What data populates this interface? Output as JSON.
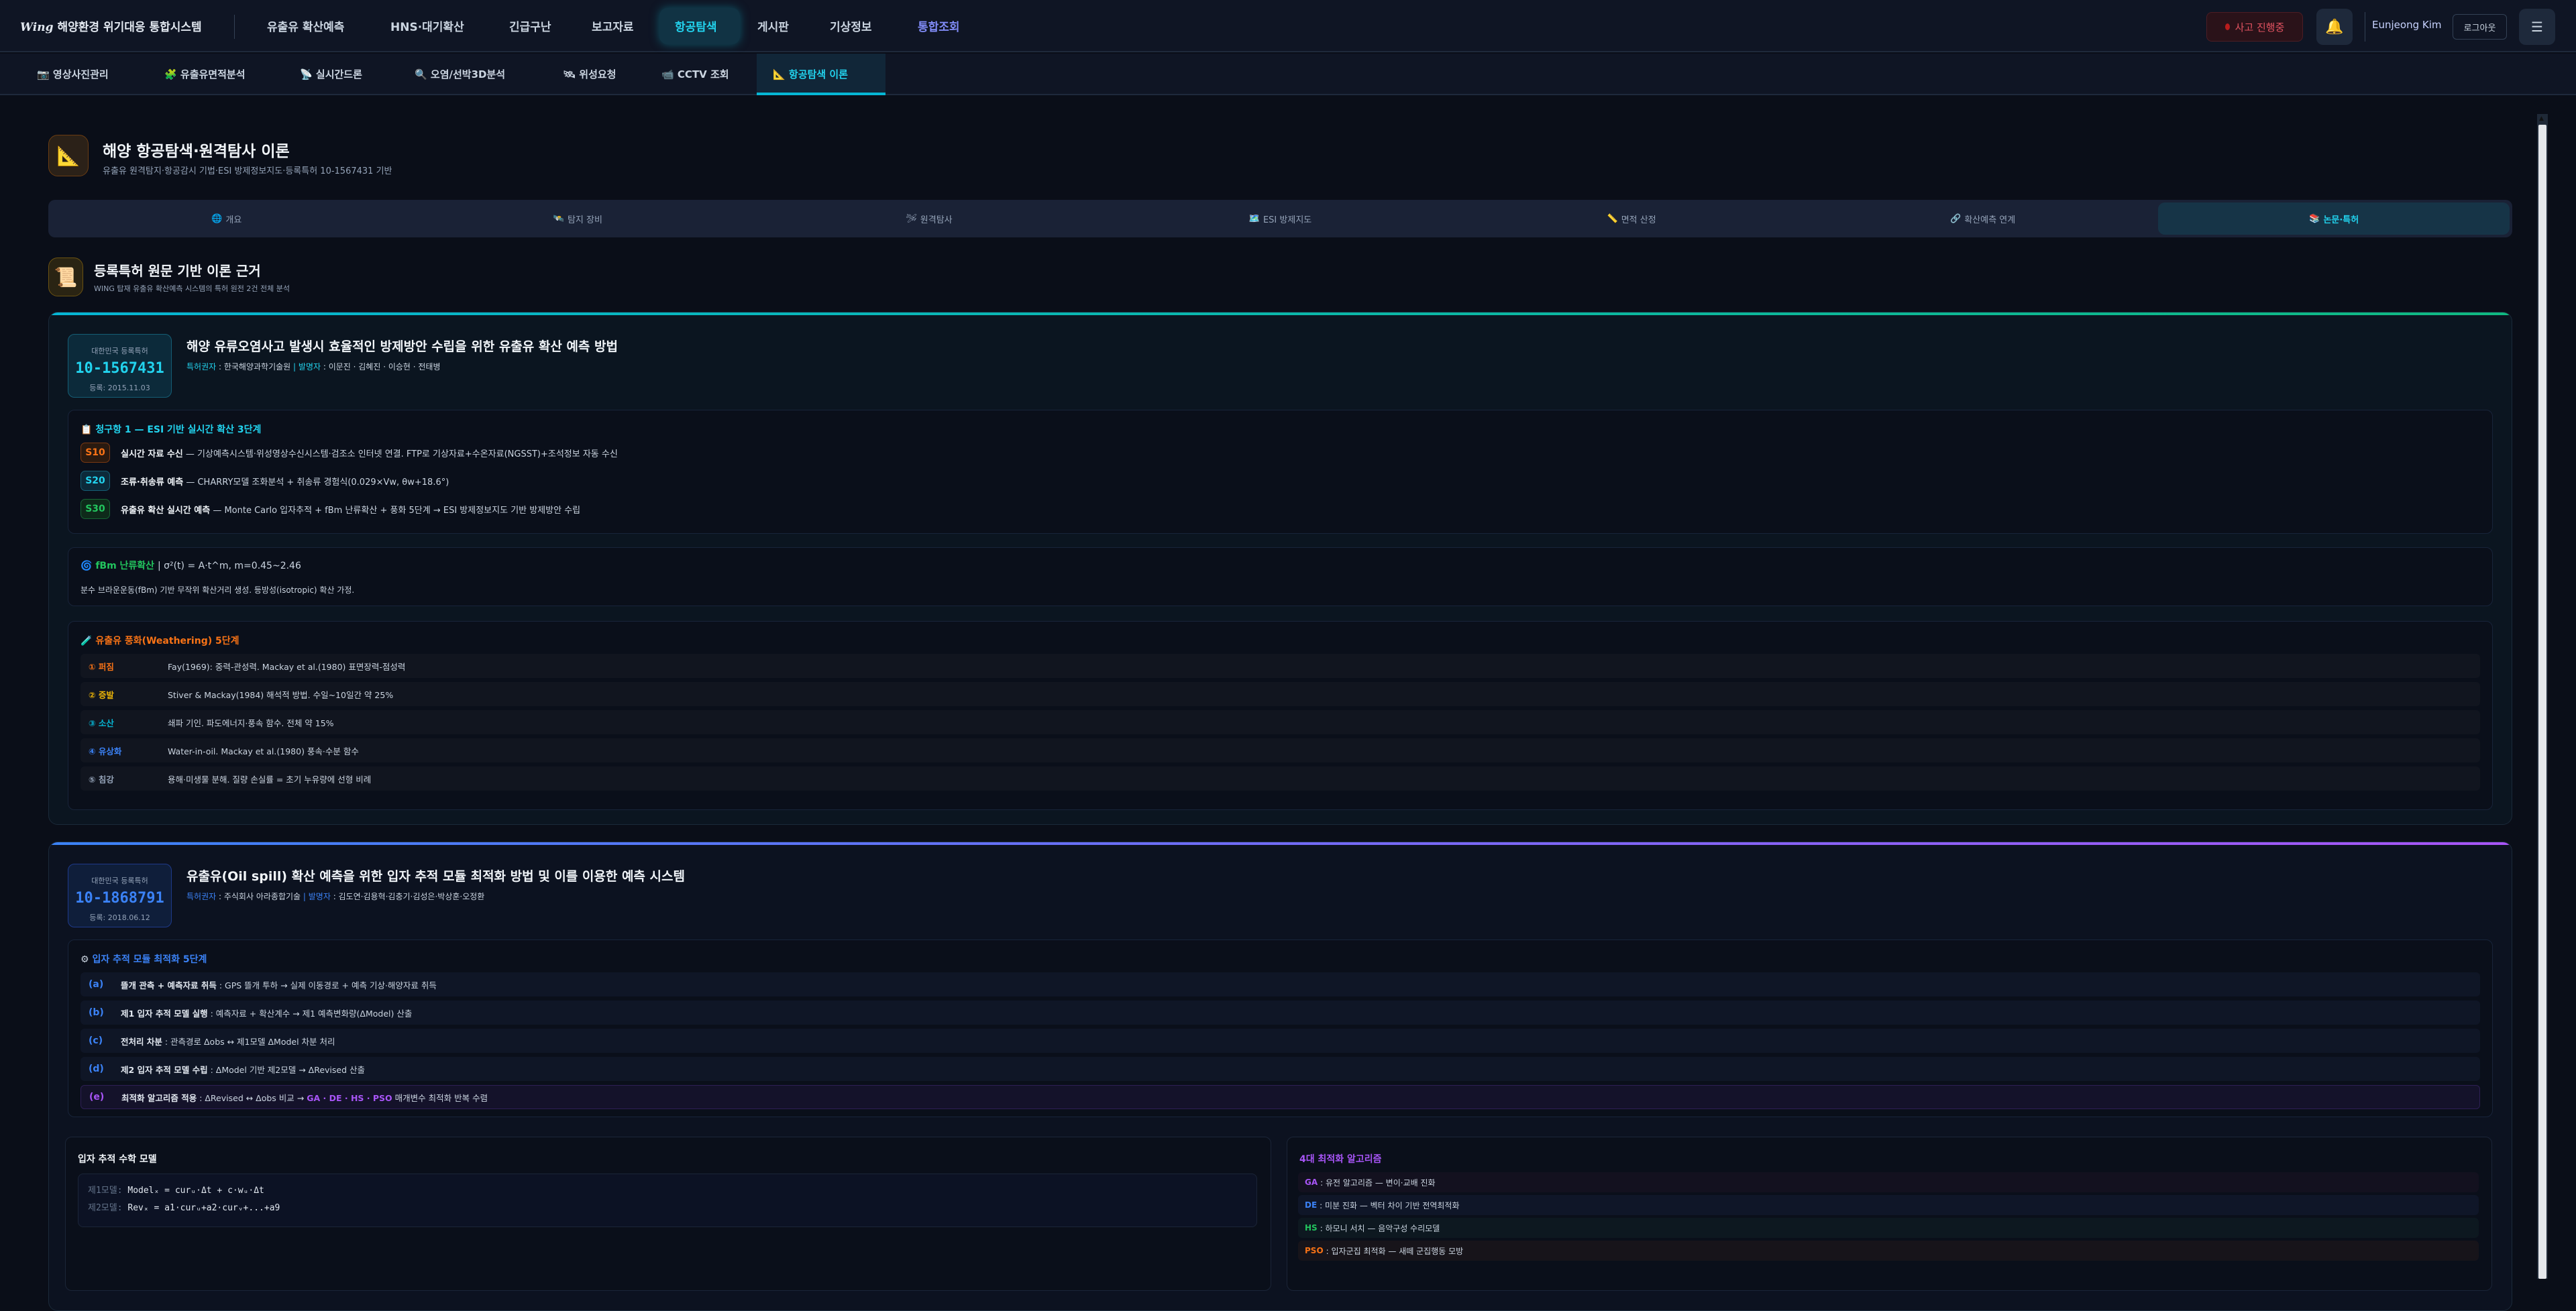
{
  "app": {
    "logo": "Wing",
    "title": "해양환경 위기대응 통합시스템"
  },
  "nav": {
    "items": [
      "유출유 확산예측",
      "HNS·대기확산",
      "긴급구난",
      "보고자료",
      "항공탐색",
      "게시판",
      "기상정보",
      "통합조회"
    ],
    "active": "항공탐색"
  },
  "header_right": {
    "incident": "사고 진행중",
    "user": "Eunjeong Kim",
    "logout": "로그아웃"
  },
  "subnav": {
    "items": [
      "영상사진관리",
      "유출유면적분석",
      "실시간드론",
      "오염/선박3D분석",
      "위성요청",
      "CCTV 조회",
      "항공탐색 이론"
    ],
    "active": "항공탐색 이론"
  },
  "page": {
    "title": "해양 항공탐색·원격탐사 이론",
    "subtitle": "유출유 원격탐지·항공감시 기법·ESI 방제정보지도·등록특허 10-1567431 기반"
  },
  "tabs": [
    {
      "icon": "🌐",
      "label": "개요"
    },
    {
      "icon": "🛰️",
      "label": "탐지 장비"
    },
    {
      "icon": "🛩",
      "label": "원격탐사"
    },
    {
      "icon": "🗺️",
      "label": "ESI 방제지도"
    },
    {
      "icon": "📏",
      "label": "면적 산정"
    },
    {
      "icon": "🔗",
      "label": "확산예측 연계"
    },
    {
      "icon": "📚",
      "label": "논문·특허"
    }
  ],
  "section": {
    "title": "등록특허 원문 기반 이론 근거",
    "subtitle": "WING 탑재 유출유 확산예측 시스템의 특허 원전 2건 전체 분석"
  },
  "patent1": {
    "badge_label": "대한민국 등록특허",
    "number": "10-1567431",
    "date": "등록: 2015.11.03",
    "title": "해양 유류오염사고 발생시 효율적인 방제방안 수립을 위한 유출유 확산 예측 방법",
    "holder_label": "특허권자",
    "holder": "한국해양과학기술원",
    "inventor_label": "발명자",
    "inventors": "이문진 · 김혜진 · 이승현 · 전태병",
    "claim_title": "청구항 1 — ESI 기반 실시간 확산 3단계",
    "steps": [
      {
        "code": "S10",
        "title": "실시간 자료 수신",
        "desc": "— 기상예측시스템·위성영상수신시스템·검조소 인터넷 연결. FTP로 기상자료+수온자료(NGSST)+조석정보 자동 수신"
      },
      {
        "code": "S20",
        "title": "조류·취송류 예측",
        "desc": "— CHARRY모델 조화분석 + 취송류 경험식(0.029×Vw, θw+18.6°)"
      },
      {
        "code": "S30",
        "title": "유출유 확산 실시간 예측",
        "desc": "— Monte Carlo 입자추적 + fBm 난류확산 + 풍화 5단계 → ESI 방제정보지도 기반 방제방안 수립"
      }
    ],
    "fbm_title": "fBm 난류확산",
    "fbm_formula": "σ²(t) = A·t^m, m=0.45~2.46",
    "fbm_desc": "분수 브라운운동(fBm) 기반 무작위 확산거리 생성. 등방성(isotropic) 확산 가정.",
    "weather_title": "유출유 풍화(Weathering) 5단계",
    "weathering": [
      {
        "k": "① 퍼짐",
        "v": "Fay(1969): 중력-관성력. Mackay et al.(1980) 표면장력-점성력",
        "color": "#f97316"
      },
      {
        "k": "② 증발",
        "v": "Stiver & Mackay(1984) 해석적 방법. 수일~10일간 약 25%",
        "color": "#eab308"
      },
      {
        "k": "③ 소산",
        "v": "쇄파 기인. 파도에너지·풍속 함수. 전체 약 15%",
        "color": "#06b6d4"
      },
      {
        "k": "④ 유상화",
        "v": "Water-in-oil. Mackay et al.(1980) 풍속·수분 함수",
        "color": "#3b82f6"
      },
      {
        "k": "⑤ 침강",
        "v": "용해·미생물 분해. 질량 손실률 = 초기 누유량에 선형 비례",
        "color": "#94a3b8"
      }
    ]
  },
  "patent2": {
    "badge_label": "대한민국 등록특허",
    "number": "10-1868791",
    "date": "등록: 2018.06.12",
    "title": "유출유(Oil spill) 확산 예측을 위한 입자 추적 모듈 최적화 방법 및 이를 이용한 예측 시스템",
    "holder_label": "특허권자",
    "holder": "주식회사 아라종합기술",
    "inventor_label": "발명자",
    "inventors": "김도연·김용혁·김충기·김성은·박상훈·오정환",
    "steps_title": "입자 추적 모듈 최적화 5단계",
    "steps": [
      {
        "k": "(a)",
        "t": "뜰개 관측 + 예측자료 취득",
        "d": " : GPS 뜰개 투하 → 실제 이동경로 + 예측 기상·해양자료 취득"
      },
      {
        "k": "(b)",
        "t": "제1 입자 추적 모델 실행",
        "d": " : 예측자료 + 확산계수 → 제1 예측변화량(ΔModel) 산출"
      },
      {
        "k": "(c)",
        "t": "전처리 차분",
        "d": " : 관측경로 Δobs ↔ 제1모델 ΔModel 차분 처리"
      },
      {
        "k": "(d)",
        "t": "제2 입자 추적 모델 수립",
        "d": " : ΔModel 기반 제2모델 → ΔRevised 산출"
      },
      {
        "k": "(e)",
        "t": "최적화 알고리즘 적용",
        "d": " : ΔRevised ↔ Δobs 비교 → ",
        "hl": "GA · DE · HS · PSO",
        "d2": " 매개변수 최적화 반복 수렴"
      }
    ],
    "math_title": "입자 추적 수학 모델",
    "math": [
      {
        "label": "제1모델:",
        "expr": "Modelₓ = curᵤ·Δt + c·wᵤ·Δt"
      },
      {
        "label": "제2모델:",
        "expr": "Revₓ = a1·curᵤ+a2·curᵥ+...+a9"
      }
    ],
    "alg_title": "4대 최적화 알고리즘",
    "algorithms": [
      {
        "k": "GA",
        "v": ": 유전 알고리즘 — 변이·교배 진화",
        "color": "#a855f7"
      },
      {
        "k": "DE",
        "v": ": 미분 진화 — 벡터 차이 기반 전역최적화",
        "color": "#3b82f6"
      },
      {
        "k": "HS",
        "v": ": 하모니 서치 — 음악구성 수리모델",
        "color": "#22c55e"
      },
      {
        "k": "PSO",
        "v": ": 입자군집 최적화 — 새떼 군집행동 모방",
        "color": "#f97316"
      }
    ]
  },
  "colors": {
    "accent": "#22d3ee",
    "patent1_bar": "#14b8a6",
    "patent2_bar": "#6366f1",
    "alert": "#e05260"
  }
}
